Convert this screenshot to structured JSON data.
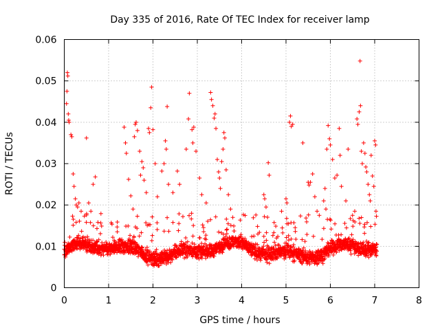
{
  "chart_data": {
    "type": "scatter",
    "title": "Day 335 of 2016, Rate Of TEC Index for receiver lamp",
    "xlabel": "GPS time / hours",
    "ylabel": "ROTI / TECUs",
    "xlim": [
      0,
      8
    ],
    "ylim": [
      0,
      0.06
    ],
    "x_ticks": [
      0,
      1,
      2,
      3,
      4,
      5,
      6,
      7,
      8
    ],
    "x_tick_labels": [
      "0",
      "1",
      "2",
      "3",
      "4",
      "5",
      "6",
      "7",
      "8"
    ],
    "y_ticks": [
      0,
      0.01,
      0.02,
      0.03,
      0.04,
      0.05,
      0.06
    ],
    "y_tick_labels": [
      "0",
      "0.01",
      "0.02",
      "0.03",
      "0.04",
      "0.05",
      "0.06"
    ],
    "grid": true,
    "marker": "plus",
    "color": "#ff0000",
    "series": [
      {
        "name": "ROTI",
        "x_range": [
          0,
          7.05
        ],
        "baseline_band": [
          0.004,
          0.014
        ],
        "points": [
          [
            0.05,
            0.0445
          ],
          [
            0.06,
            0.0475
          ],
          [
            0.07,
            0.052
          ],
          [
            0.08,
            0.0512
          ],
          [
            0.09,
            0.042
          ],
          [
            0.1,
            0.0405
          ],
          [
            0.11,
            0.04
          ],
          [
            0.15,
            0.037
          ],
          [
            0.17,
            0.0365
          ],
          [
            0.2,
            0.0275
          ],
          [
            0.22,
            0.0245
          ],
          [
            0.25,
            0.0215
          ],
          [
            0.27,
            0.02
          ],
          [
            0.3,
            0.0195
          ],
          [
            0.33,
            0.0205
          ],
          [
            0.38,
            0.0185
          ],
          [
            0.5,
            0.0362
          ],
          [
            0.55,
            0.0205
          ],
          [
            0.6,
            0.0185
          ],
          [
            0.65,
            0.025
          ],
          [
            0.7,
            0.0268
          ],
          [
            1.35,
            0.0388
          ],
          [
            1.38,
            0.035
          ],
          [
            1.4,
            0.0325
          ],
          [
            1.45,
            0.0262
          ],
          [
            1.5,
            0.0222
          ],
          [
            1.55,
            0.019
          ],
          [
            1.58,
            0.0365
          ],
          [
            1.6,
            0.0395
          ],
          [
            1.62,
            0.04
          ],
          [
            1.65,
            0.038
          ],
          [
            1.7,
            0.033
          ],
          [
            1.72,
            0.0272
          ],
          [
            1.75,
            0.0305
          ],
          [
            1.78,
            0.029
          ],
          [
            1.8,
            0.026
          ],
          [
            1.85,
            0.023
          ],
          [
            1.9,
            0.0385
          ],
          [
            1.92,
            0.0375
          ],
          [
            1.95,
            0.0435
          ],
          [
            1.97,
            0.0485
          ],
          [
            2.0,
            0.0382
          ],
          [
            2.05,
            0.03
          ],
          [
            2.1,
            0.022
          ],
          [
            2.2,
            0.0282
          ],
          [
            2.25,
            0.03
          ],
          [
            2.28,
            0.0355
          ],
          [
            2.3,
            0.0335
          ],
          [
            2.32,
            0.0438
          ],
          [
            2.35,
            0.025
          ],
          [
            2.45,
            0.023
          ],
          [
            2.55,
            0.0282
          ],
          [
            2.6,
            0.025
          ],
          [
            2.75,
            0.0335
          ],
          [
            2.8,
            0.0408
          ],
          [
            2.82,
            0.047
          ],
          [
            2.88,
            0.0382
          ],
          [
            2.9,
            0.035
          ],
          [
            2.92,
            0.0388
          ],
          [
            2.97,
            0.033
          ],
          [
            3.05,
            0.0265
          ],
          [
            3.1,
            0.0225
          ],
          [
            3.2,
            0.0205
          ],
          [
            3.3,
            0.0472
          ],
          [
            3.32,
            0.0455
          ],
          [
            3.35,
            0.044
          ],
          [
            3.38,
            0.041
          ],
          [
            3.4,
            0.042
          ],
          [
            3.42,
            0.0385
          ],
          [
            3.45,
            0.031
          ],
          [
            3.48,
            0.028
          ],
          [
            3.5,
            0.0265
          ],
          [
            3.52,
            0.024
          ],
          [
            3.55,
            0.0305
          ],
          [
            3.58,
            0.0335
          ],
          [
            3.6,
            0.0375
          ],
          [
            3.62,
            0.0362
          ],
          [
            3.65,
            0.0285
          ],
          [
            3.7,
            0.0225
          ],
          [
            3.75,
            0.019
          ],
          [
            3.8,
            0.017
          ],
          [
            4.5,
            0.0225
          ],
          [
            4.52,
            0.0215
          ],
          [
            4.55,
            0.0195
          ],
          [
            4.6,
            0.0302
          ],
          [
            4.62,
            0.0272
          ],
          [
            4.9,
            0.0185
          ],
          [
            5.0,
            0.0215
          ],
          [
            5.02,
            0.0205
          ],
          [
            5.08,
            0.04
          ],
          [
            5.1,
            0.0415
          ],
          [
            5.12,
            0.039
          ],
          [
            5.15,
            0.0395
          ],
          [
            5.38,
            0.035
          ],
          [
            5.5,
            0.0255
          ],
          [
            5.52,
            0.0248
          ],
          [
            5.55,
            0.0255
          ],
          [
            5.6,
            0.0275
          ],
          [
            5.65,
            0.022
          ],
          [
            5.7,
            0.0185
          ],
          [
            5.75,
            0.0175
          ],
          [
            5.85,
            0.021
          ],
          [
            5.88,
            0.024
          ],
          [
            5.9,
            0.019
          ],
          [
            5.92,
            0.0335
          ],
          [
            5.95,
            0.0392
          ],
          [
            5.98,
            0.036
          ],
          [
            6.0,
            0.0345
          ],
          [
            6.05,
            0.031
          ],
          [
            6.1,
            0.0265
          ],
          [
            6.15,
            0.0272
          ],
          [
            6.2,
            0.0385
          ],
          [
            6.22,
            0.032
          ],
          [
            6.25,
            0.0245
          ],
          [
            6.35,
            0.021
          ],
          [
            6.4,
            0.0335
          ],
          [
            6.5,
            0.0175
          ],
          [
            6.55,
            0.0185
          ],
          [
            6.6,
            0.0408
          ],
          [
            6.62,
            0.0395
          ],
          [
            6.65,
            0.0425
          ],
          [
            6.67,
            0.0548
          ],
          [
            6.68,
            0.044
          ],
          [
            6.7,
            0.033
          ],
          [
            6.72,
            0.03
          ],
          [
            6.75,
            0.035
          ],
          [
            6.78,
            0.0325
          ],
          [
            6.8,
            0.0292
          ],
          [
            6.82,
            0.028
          ],
          [
            6.85,
            0.025
          ],
          [
            6.88,
            0.0225
          ],
          [
            6.9,
            0.021
          ],
          [
            6.92,
            0.032
          ],
          [
            6.95,
            0.027
          ],
          [
            6.98,
            0.0245
          ],
          [
            7.0,
            0.0355
          ],
          [
            7.02,
            0.0345
          ],
          [
            7.03,
            0.0185
          ]
        ]
      }
    ]
  }
}
